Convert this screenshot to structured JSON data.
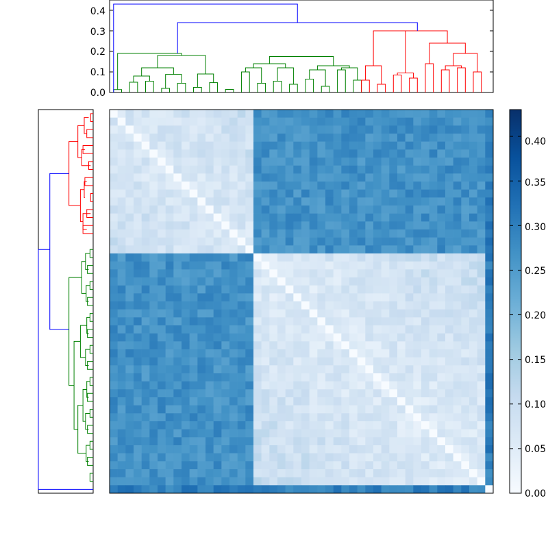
{
  "chart_data": [
    {
      "type": "dendrogram",
      "orientation": "top",
      "ylim": [
        0,
        0.45
      ],
      "ytick_labels": [
        "0.0",
        "0.1",
        "0.2",
        "0.3",
        "0.4"
      ],
      "cluster_colors": [
        "#0000ff",
        "#008000",
        "#ff0000"
      ],
      "leaf_count": 48,
      "top_merge_height": 0.43,
      "second_merge_height": 0.34,
      "red_cluster_height": 0.3,
      "green_cluster_height": 0.19
    },
    {
      "type": "dendrogram",
      "orientation": "left",
      "leaf_count": 48,
      "cluster_colors": [
        "#0000ff",
        "#ff0000",
        "#008000"
      ]
    },
    {
      "type": "heatmap",
      "rows": 48,
      "cols": 48,
      "colormap": "Blues",
      "vmin": 0,
      "vmax": 0.43,
      "colorbar_tick_labels": [
        "0.00",
        "0.05",
        "0.10",
        "0.15",
        "0.20",
        "0.25",
        "0.30",
        "0.35",
        "0.40"
      ],
      "diagonal_value": 0
    }
  ]
}
